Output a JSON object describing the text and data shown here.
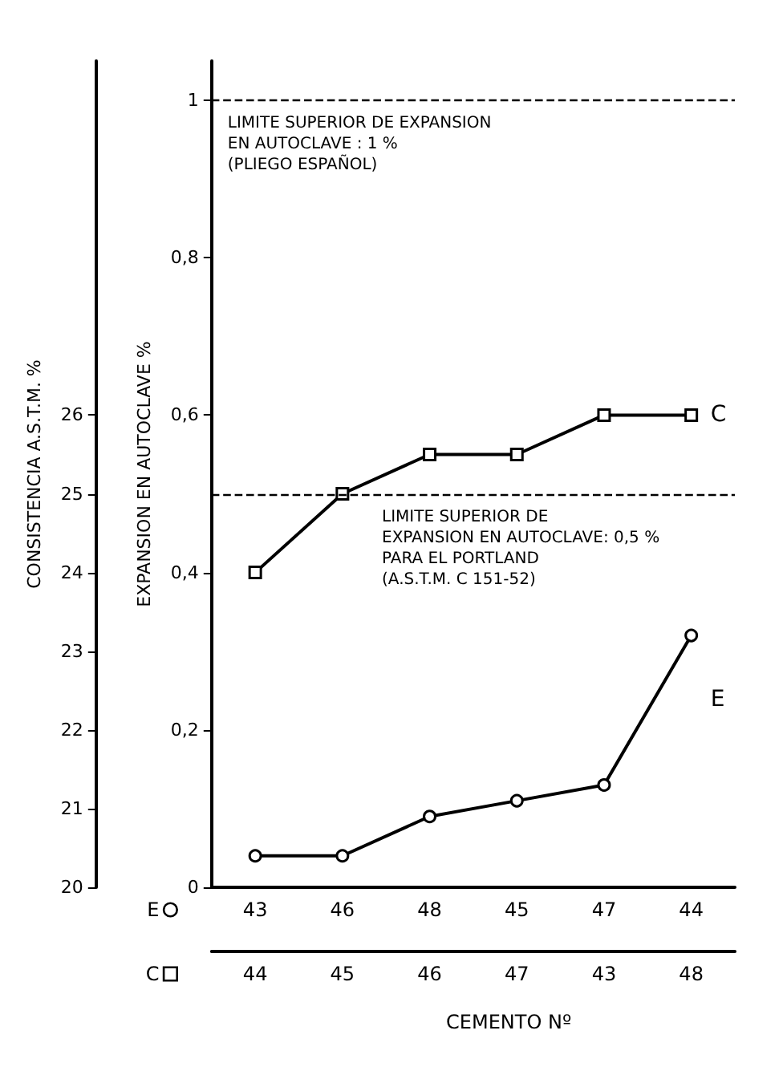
{
  "chart_data": {
    "type": "line",
    "annotations": [
      "CEMENTO Nº"
    ],
    "ylabel": "EXPANSION EN AUTOCLAVE %",
    "y2label": "CONSISTENCIA A.S.T.M. %",
    "categories": [
      "43\n44",
      "46\n45",
      "48\n46",
      "45\n47",
      "47\n43",
      "44\n48"
    ],
    "series": [
      {
        "name": "C",
        "color": "#000000",
        "marker": "square",
        "axis": "y2",
        "values": [
          24,
          25,
          25.5,
          25.5,
          26,
          26
        ]
      },
      {
        "name": "E",
        "color": "#000000",
        "marker": "circle",
        "values": [
          0.04,
          0.04,
          0.09,
          0.11,
          0.13,
          0.32
        ]
      }
    ],
    "ylim": [
      0,
      1.05
    ],
    "yticks": [
      0,
      {
        "value": 0.2,
        "label": "0,2"
      },
      {
        "value": 0.4,
        "label": "0,4"
      },
      {
        "value": 0.6,
        "label": "0,6"
      },
      {
        "value": 0.8,
        "label": "0,8"
      },
      1
    ],
    "y2lim": [
      20,
      30.5
    ],
    "y2ticks": [
      20,
      21,
      22,
      23,
      24,
      25,
      26
    ],
    "ref_lines": [
      {
        "axis": "y",
        "value": 1,
        "label": "LIMITE SUPERIOR DE EXPANSION\nEN AUTOCLAVE : 1 %\n(PLIEGO ESPAÑOL)",
        "line_style": "dashed"
      },
      {
        "axis": "y",
        "value": 0.5,
        "label": "LIMITE SUPERIOR DE\nEXPANSION EN AUTOCLAVE: 0,5 %\nPARA EL PORTLAND\n(A.S.T.M. C 151-52)",
        "line_style": "dashed"
      }
    ],
    "grid": false,
    "legend": "bottom left",
    "line_style": "solid"
  }
}
